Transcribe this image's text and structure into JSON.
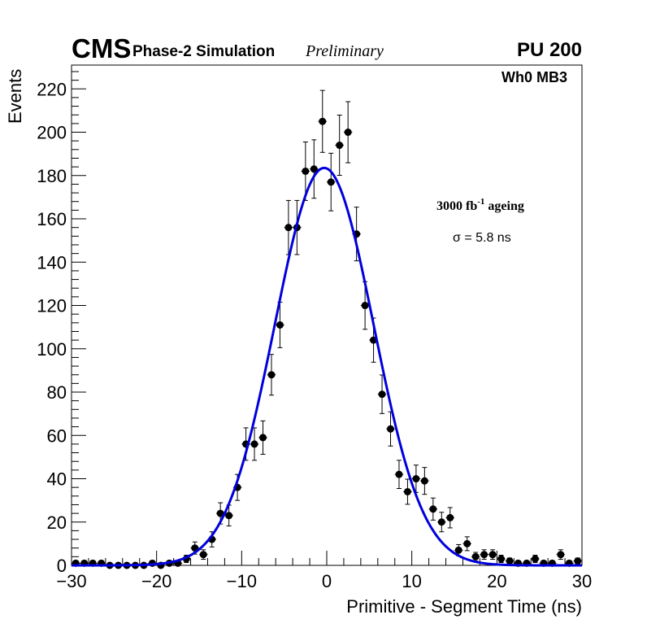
{
  "header": {
    "cms": "CMS",
    "subtitle": "Phase-2 Simulation",
    "status": "Preliminary",
    "pileup": "PU 200"
  },
  "annotations": {
    "chamber": "Wh0 MB3",
    "ageing_value": "3000 fb",
    "ageing_exp": "-1",
    "ageing_suffix": " ageing",
    "sigma": "σ = 5.8 ns"
  },
  "colors": {
    "fit": "#0000dd",
    "points": "#000000"
  },
  "chart_data": {
    "type": "scatter",
    "title": "",
    "xlabel": "Primitive - Segment Time (ns)",
    "ylabel": "Events",
    "xlim": [
      -30,
      30
    ],
    "ylim": [
      0,
      231
    ],
    "xticks": [
      -30,
      -20,
      -10,
      0,
      10,
      20,
      30
    ],
    "xtick_labels": [
      "−30",
      "−20",
      "−10",
      "0",
      "10",
      "20",
      "30"
    ],
    "yticks": [
      0,
      20,
      40,
      60,
      80,
      100,
      120,
      140,
      160,
      180,
      200,
      220
    ],
    "ytick_labels": [
      "0",
      "20",
      "40",
      "60",
      "80",
      "100",
      "120",
      "140",
      "160",
      "180",
      "200",
      "220"
    ],
    "bin_width": 1,
    "series": [
      {
        "name": "Simulation",
        "x": [
          -29.5,
          -28.5,
          -27.5,
          -26.5,
          -25.5,
          -24.5,
          -23.5,
          -22.5,
          -21.5,
          -20.5,
          -19.5,
          -18.5,
          -17.5,
          -16.5,
          -15.5,
          -14.5,
          -13.5,
          -12.5,
          -11.5,
          -10.5,
          -9.5,
          -8.5,
          -7.5,
          -6.5,
          -5.5,
          -4.5,
          -3.5,
          -2.5,
          -1.5,
          -0.5,
          0.5,
          1.5,
          2.5,
          3.5,
          4.5,
          5.5,
          6.5,
          7.5,
          8.5,
          9.5,
          10.5,
          11.5,
          12.5,
          13.5,
          14.5,
          15.5,
          16.5,
          17.5,
          18.5,
          19.5,
          20.5,
          21.5,
          22.5,
          23.5,
          24.5,
          25.5,
          26.5,
          27.5,
          28.5,
          29.5
        ],
        "y": [
          1,
          1,
          1,
          1,
          0,
          0,
          0,
          0,
          0,
          1,
          0,
          1,
          1,
          3,
          8,
          5,
          12,
          24,
          23,
          36,
          56,
          56,
          59,
          88,
          111,
          156,
          156,
          182,
          183,
          205,
          177,
          194,
          200,
          153,
          120,
          104,
          79,
          63,
          42,
          34,
          40,
          39,
          26,
          20,
          22,
          7,
          10,
          4,
          5,
          5,
          3,
          2,
          1,
          1,
          3,
          1,
          1,
          5,
          1,
          2
        ],
        "yerr": [
          1,
          1,
          1,
          1,
          0,
          0,
          0,
          0,
          0,
          1,
          0,
          1,
          1,
          1.7,
          2.8,
          2.2,
          3.5,
          4.9,
          4.8,
          6,
          7.5,
          7.5,
          7.7,
          9.4,
          10.5,
          12.5,
          12.5,
          13.5,
          13.5,
          14.3,
          13.3,
          13.9,
          14.1,
          12.4,
          11,
          10.2,
          8.9,
          7.9,
          6.5,
          5.8,
          6.3,
          6.2,
          5.1,
          4.5,
          4.7,
          2.6,
          3.2,
          2,
          2.2,
          2.2,
          1.7,
          1.4,
          1,
          1,
          1.7,
          1,
          1,
          2.2,
          1,
          1.4
        ]
      }
    ],
    "fit": {
      "type": "gaussian",
      "amplitude": 183.5,
      "mean": -0.3,
      "sigma": 5.8
    }
  }
}
